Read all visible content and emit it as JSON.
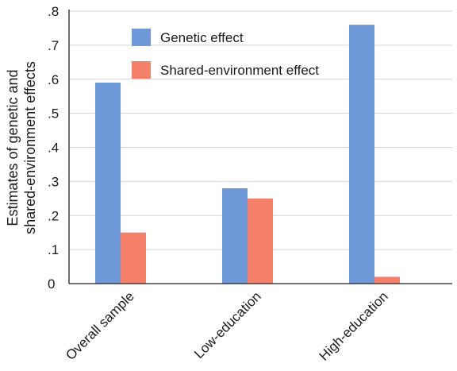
{
  "chart_data": {
    "type": "bar",
    "title": "",
    "xlabel": "",
    "ylabel": [
      "Estimates of genetic and",
      "shared-environment effects"
    ],
    "categories": [
      "Overall sample",
      "Low-education",
      "High-education"
    ],
    "series": [
      {
        "name": "Genetic effect",
        "color": "#6f98d8",
        "values": [
          0.59,
          0.28,
          0.76
        ]
      },
      {
        "name": "Shared-environment effect",
        "color": "#f5806a",
        "values": [
          0.15,
          0.25,
          0.02
        ]
      }
    ],
    "ylim": [
      0,
      0.8
    ],
    "yticks": [
      {
        "value": 0,
        "label": "0"
      },
      {
        "value": 0.1,
        "label": ".1"
      },
      {
        "value": 0.2,
        "label": ".2"
      },
      {
        "value": 0.3,
        "label": ".3"
      },
      {
        "value": 0.4,
        "label": ".4"
      },
      {
        "value": 0.5,
        "label": ".5"
      },
      {
        "value": 0.6,
        "label": ".6"
      },
      {
        "value": 0.7,
        "label": ".7"
      },
      {
        "value": 0.8,
        "label": ".8"
      }
    ],
    "grid": true,
    "legend_position": "top-left"
  },
  "colors": {
    "grid": "#d6d6d6",
    "axis": "#222222"
  }
}
